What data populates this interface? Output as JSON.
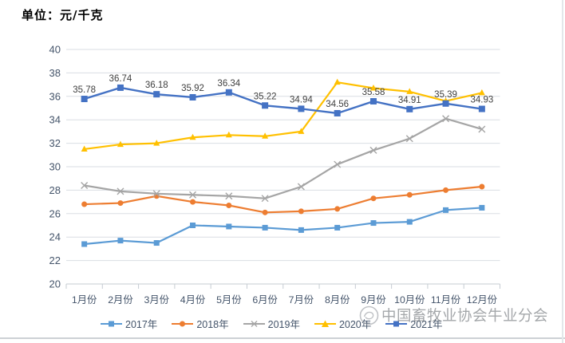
{
  "title": "单位：元/千克",
  "watermark": {
    "text": "中国畜牧业协会牛业分会",
    "logo_icon": "association-logo"
  },
  "chart_data": {
    "type": "line",
    "title": "单位：元/千克",
    "categories": [
      "1月份",
      "2月份",
      "3月份",
      "4月份",
      "5月份",
      "6月份",
      "7月份",
      "8月份",
      "9月份",
      "10月份",
      "11月份",
      "12月份"
    ],
    "xlabel": "",
    "ylabel": "",
    "ylim": [
      20,
      40
    ],
    "ytick_step": 2,
    "grid": true,
    "legend_position": "bottom",
    "axis_text_color": "#44546A",
    "data_label_color": "#404040",
    "series": [
      {
        "name": "2017年",
        "color": "#5B9BD5",
        "marker": "square",
        "values": [
          23.4,
          23.7,
          23.5,
          25.0,
          24.9,
          24.8,
          24.6,
          24.8,
          25.2,
          25.3,
          26.3,
          26.5
        ]
      },
      {
        "name": "2018年",
        "color": "#ED7D31",
        "marker": "circle",
        "values": [
          26.8,
          26.9,
          27.5,
          27.0,
          26.7,
          26.1,
          26.2,
          26.4,
          27.3,
          27.6,
          28.0,
          28.3
        ]
      },
      {
        "name": "2019年",
        "color": "#A5A5A5",
        "marker": "x",
        "values": [
          28.4,
          27.9,
          27.7,
          27.6,
          27.5,
          27.3,
          28.3,
          30.2,
          31.4,
          32.4,
          34.1,
          33.2
        ]
      },
      {
        "name": "2020年",
        "color": "#FFC000",
        "marker": "triangle",
        "values": [
          31.5,
          31.9,
          32.0,
          32.5,
          32.7,
          32.6,
          33.0,
          37.2,
          36.7,
          36.4,
          35.6,
          36.3
        ]
      },
      {
        "name": "2021年",
        "color": "#4472C4",
        "marker": "square",
        "values": [
          35.78,
          36.74,
          36.18,
          35.92,
          36.34,
          35.22,
          34.94,
          34.56,
          35.58,
          34.91,
          35.39,
          34.93
        ],
        "data_labels": [
          "35.78",
          "36.74",
          "36.18",
          "35.92",
          "36.34",
          "35.22",
          "34.94",
          "34.56",
          "35.58",
          "34.91",
          "35.39",
          "34.93"
        ]
      }
    ]
  }
}
